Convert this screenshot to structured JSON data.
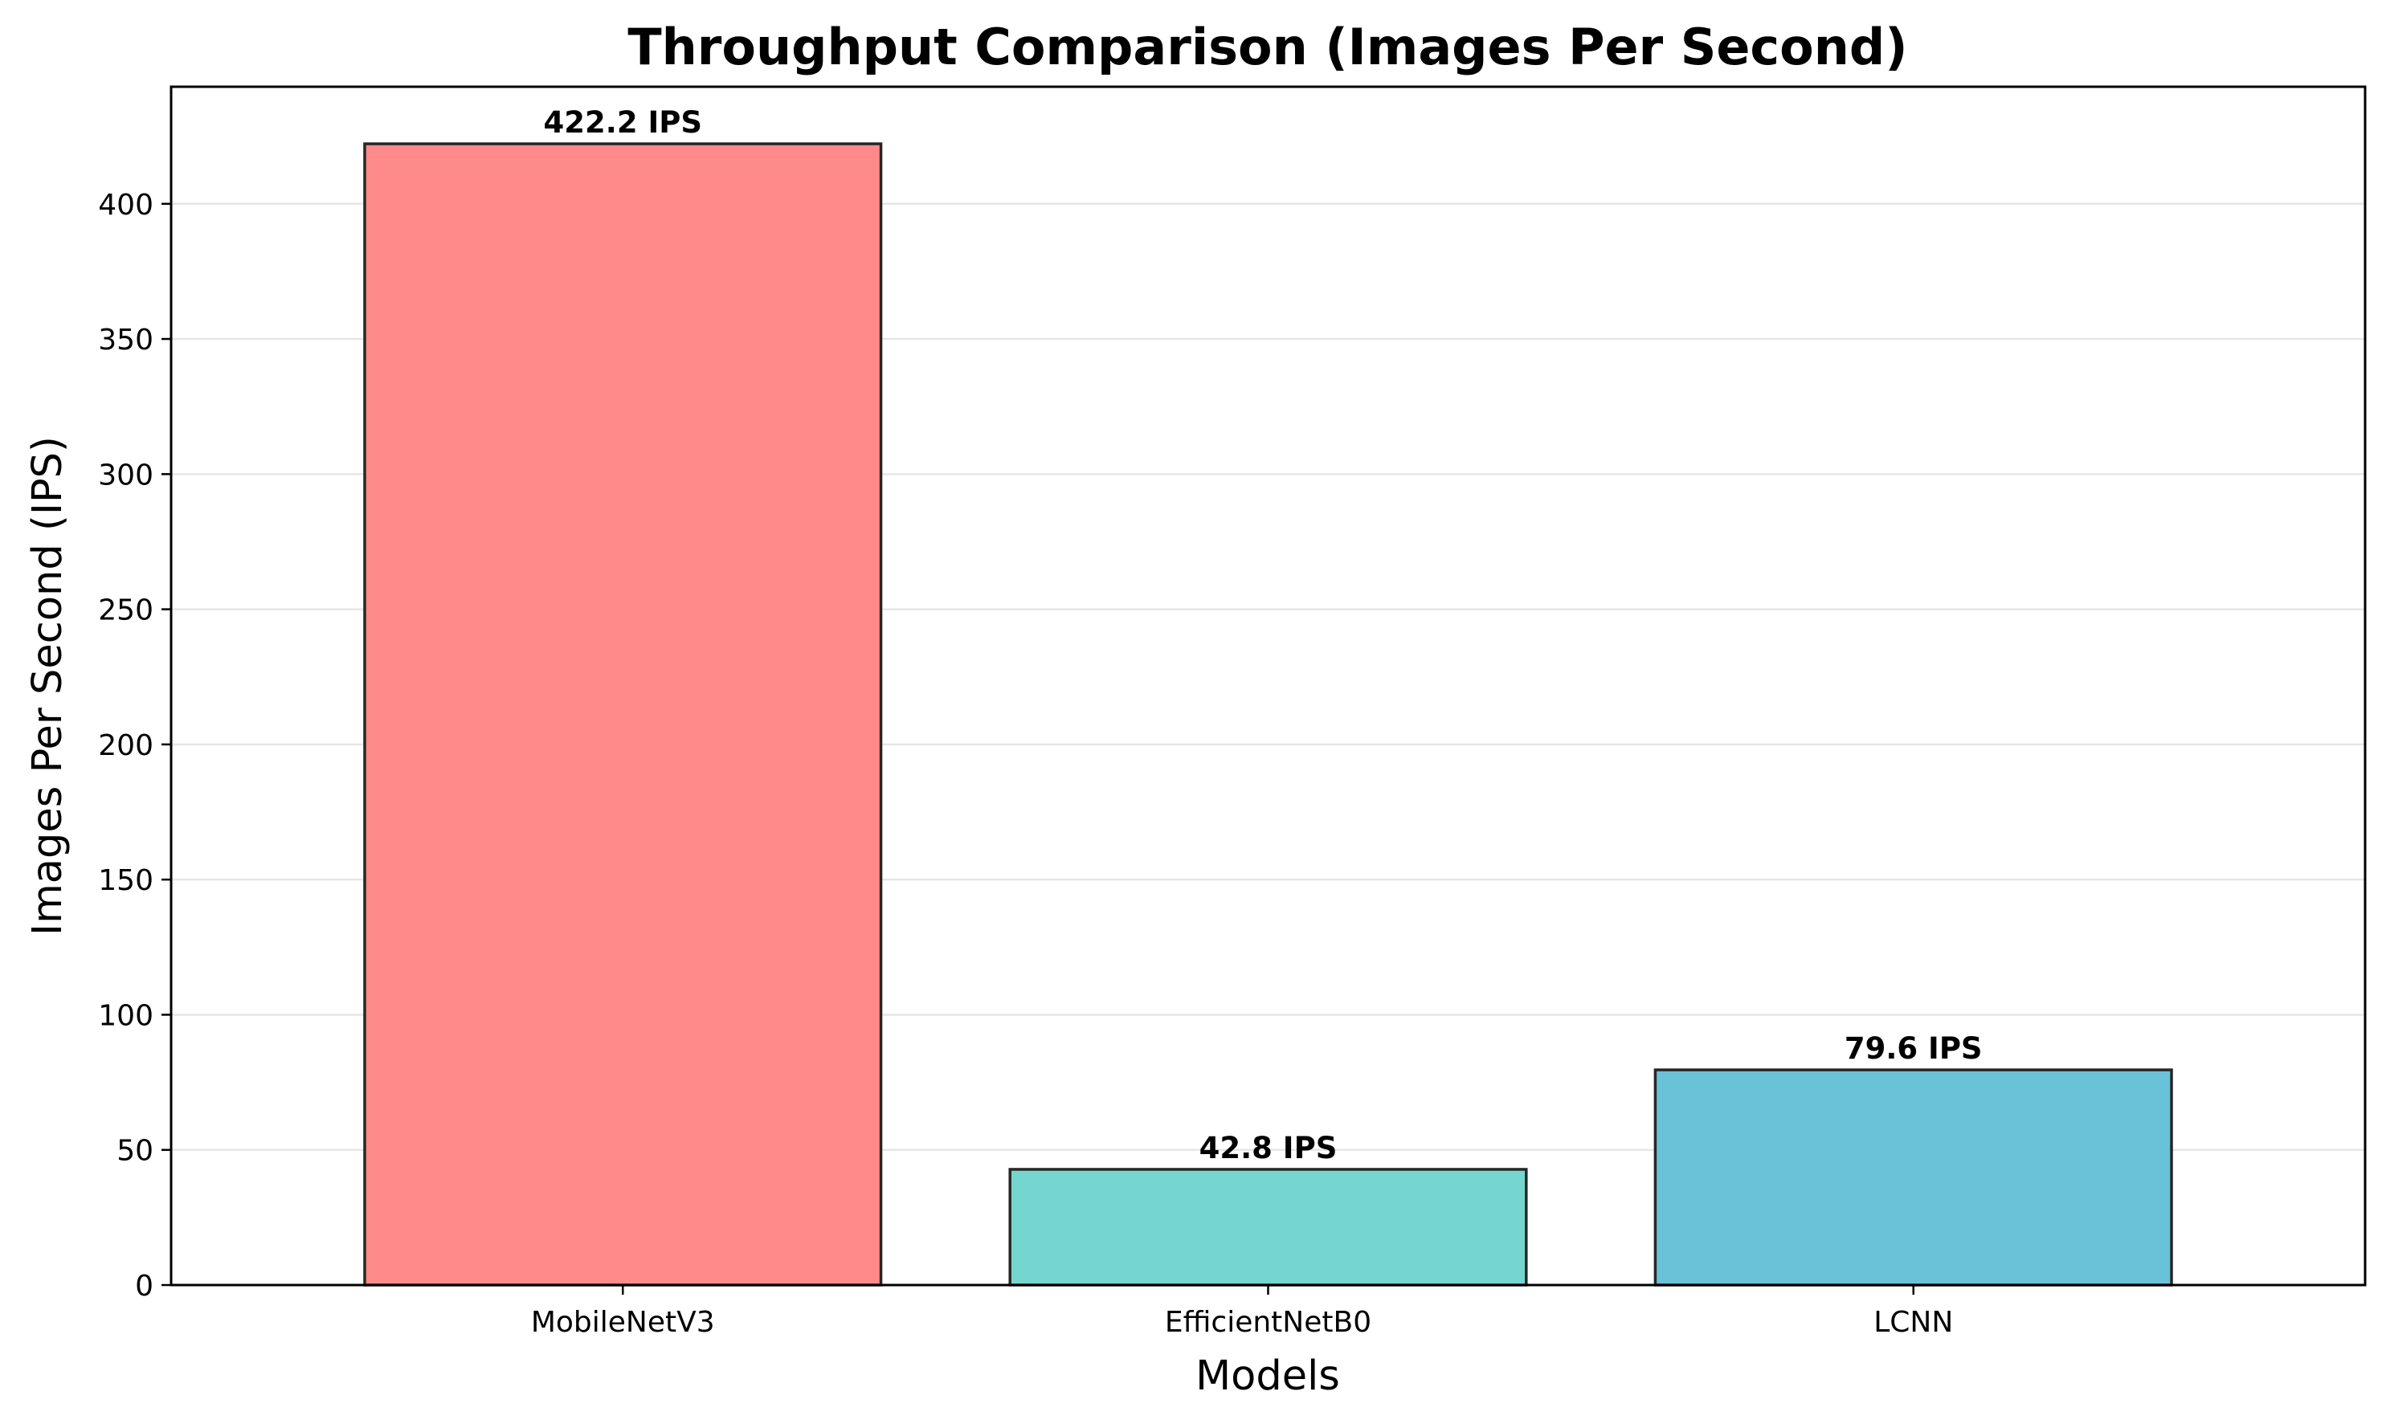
{
  "chart_data": {
    "type": "bar",
    "title": "Throughput Comparison (Images Per Second)",
    "xlabel": "Models",
    "ylabel": "Images Per Second (IPS)",
    "categories": [
      "MobileNetV3",
      "EfficientNetB0",
      "LCNN"
    ],
    "values": [
      422.2,
      42.8,
      79.6
    ],
    "value_labels": [
      "422.2 IPS",
      "42.8 IPS",
      "79.6 IPS"
    ],
    "colors": [
      "#ff8a8a",
      "#75d6d0",
      "#6ac2d8"
    ],
    "ylim": [
      0,
      443.31
    ],
    "yticks": [
      0,
      50,
      100,
      150,
      200,
      250,
      300,
      350,
      400
    ],
    "ytick_labels": [
      "0",
      "50",
      "100",
      "150",
      "200",
      "250",
      "300",
      "350",
      "400"
    ],
    "grid": "y",
    "legend": "none"
  }
}
